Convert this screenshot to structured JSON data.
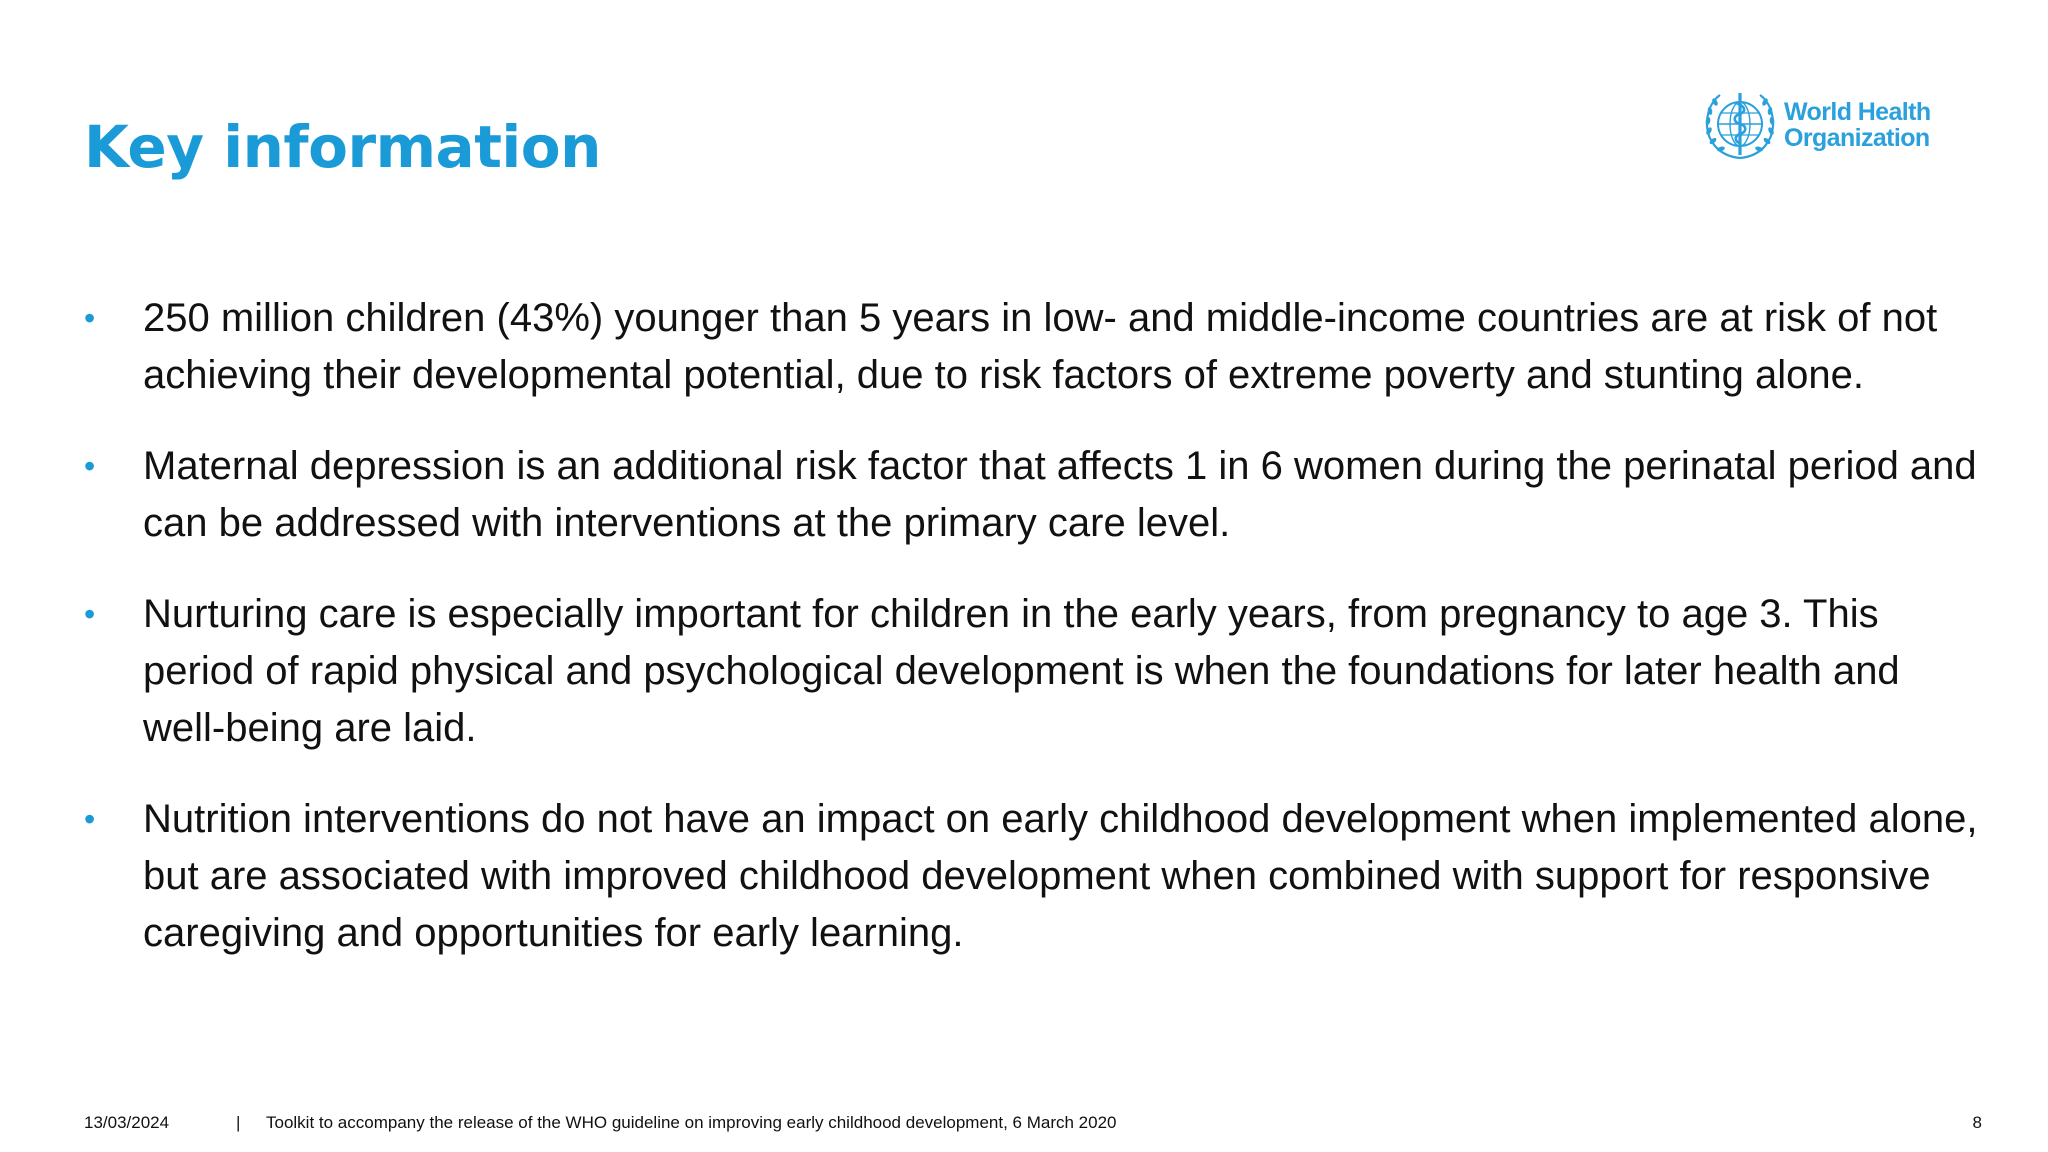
{
  "slide": {
    "title": "Key information",
    "logo": {
      "line1": "World Health",
      "line2": "Organization",
      "icon": "who-emblem-icon"
    },
    "bullets": [
      {
        "marker": "•",
        "text": "250 million children (43%) younger than 5 years in low- and middle-income countries are at risk of not achieving their developmental potential, due to risk factors of extreme poverty and stunting alone."
      },
      {
        "marker": "•",
        "text": "Maternal depression is an additional risk factor that affects 1 in 6 women during the perinatal period and can be addressed with interventions at the primary care level."
      },
      {
        "marker": "•",
        "text": "Nurturing care is especially important for children in the early years, from pregnancy to age 3. This period of rapid physical and psychological development is when the foundations for later health and well-being are laid."
      },
      {
        "marker": "•",
        "text": "Nutrition interventions do not have an impact on early childhood development when implemented alone, but are associated with improved childhood development when combined with support for responsive caregiving and opportunities for early learning."
      }
    ],
    "footer": {
      "date": "13/03/2024",
      "separator": "|",
      "text": "Toolkit to accompany the release of the WHO guideline on improving early childhood development, 6 March 2020",
      "page": "8"
    }
  },
  "colors": {
    "title": "#1a9ad6",
    "bullet_marker": "#1a9ad6",
    "logo": "#2aa0dc",
    "body_text": "#111111",
    "background": "#ffffff"
  }
}
